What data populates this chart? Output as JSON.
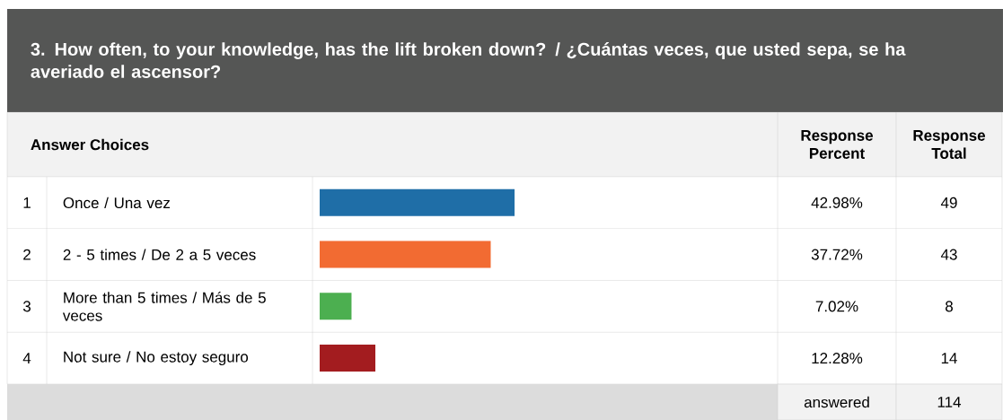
{
  "chart_data": {
    "type": "bar",
    "orientation": "horizontal",
    "title": "3. How often, to your knowledge, has the lift broken down? / ¿Cuántas veces, que usted sepa, se ha averiado el ascensor?",
    "categories": [
      "Once / Una vez",
      "2 - 5 times / De 2 a 5 veces",
      "More than 5 times / Más de 5 veces",
      "Not sure / No estoy seguro"
    ],
    "values": [
      42.98,
      37.72,
      7.02,
      12.28
    ],
    "value_labels": [
      "42.98%",
      "37.72%",
      "7.02%",
      "12.28%"
    ],
    "colors": [
      "#1f6ea7",
      "#f26b32",
      "#4caf50",
      "#a31c1f"
    ],
    "annotations": [
      "Answer Choices",
      "Response Percent",
      "Response Total",
      "1",
      "2",
      "3",
      "4",
      "49",
      "43",
      "8",
      "14",
      "answered",
      "114"
    ]
  }
}
